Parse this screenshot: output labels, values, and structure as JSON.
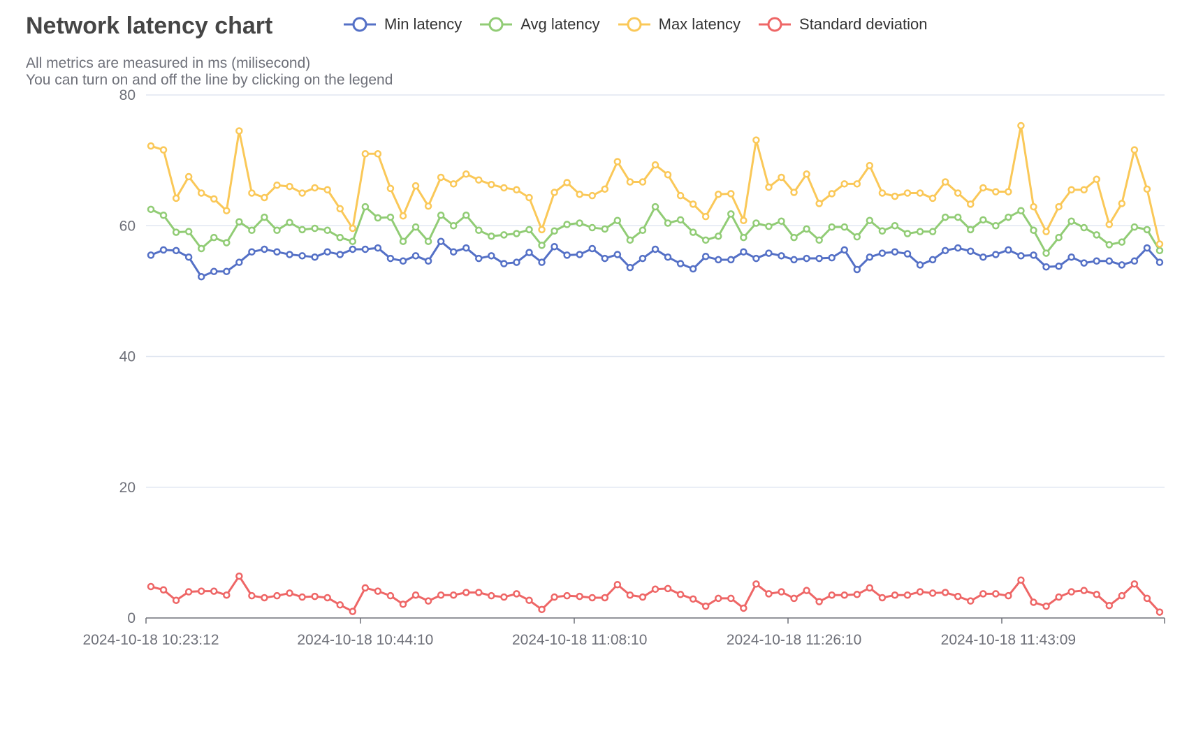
{
  "chart_data": {
    "type": "line",
    "title": "Network latency chart",
    "subtitle_lines": [
      "All metrics are measured in ms (milisecond)",
      "You can turn on and off the line by clicking on the legend"
    ],
    "xlabel": "",
    "ylabel": "",
    "ylim": [
      0,
      80
    ],
    "y_ticks": [
      0,
      20,
      40,
      60,
      80
    ],
    "grid": "horizontal",
    "legend_position": "top",
    "x_tick_labels": [
      {
        "label": "2024-10-18 10:23:12",
        "index": 0
      },
      {
        "label": "2024-10-18 10:44:10",
        "index": 17
      },
      {
        "label": "2024-10-18 11:08:10",
        "index": 34
      },
      {
        "label": "2024-10-18 11:26:10",
        "index": 51
      },
      {
        "label": "2024-10-18 11:43:09",
        "index": 68
      }
    ],
    "point_count": 81,
    "series": [
      {
        "name": "Min latency",
        "color": "#5470c6",
        "values": [
          55.5,
          56.3,
          56.2,
          55.2,
          52.2,
          53.0,
          53.0,
          54.4,
          56.0,
          56.4,
          56.0,
          55.6,
          55.4,
          55.2,
          56.0,
          55.6,
          56.4,
          56.4,
          56.6,
          55.0,
          54.6,
          55.4,
          54.6,
          57.6,
          56.0,
          56.6,
          55.0,
          55.4,
          54.2,
          54.4,
          55.9,
          54.4,
          56.8,
          55.5,
          55.6,
          56.5,
          55.0,
          55.6,
          53.6,
          55.0,
          56.4,
          55.2,
          54.2,
          53.4,
          55.3,
          54.8,
          54.8,
          56.0,
          55.0,
          55.8,
          55.4,
          54.8,
          55.0,
          55.0,
          55.1,
          56.3,
          53.3,
          55.2,
          55.8,
          56.0,
          55.7,
          54.0,
          54.8,
          56.2,
          56.6,
          56.1,
          55.2,
          55.6,
          56.3,
          55.4,
          55.5,
          53.7,
          53.8,
          55.2,
          54.3,
          54.6,
          54.6,
          54.0,
          54.6,
          56.6,
          54.4
        ]
      },
      {
        "name": "Avg latency",
        "color": "#91cc75",
        "values": [
          62.5,
          61.6,
          59.0,
          59.1,
          56.5,
          58.2,
          57.4,
          60.6,
          59.3,
          61.3,
          59.3,
          60.5,
          59.4,
          59.6,
          59.3,
          58.2,
          57.6,
          62.9,
          61.2,
          61.3,
          57.6,
          59.8,
          57.6,
          61.6,
          60.0,
          61.6,
          59.3,
          58.4,
          58.6,
          58.8,
          59.4,
          57.0,
          59.2,
          60.2,
          60.4,
          59.7,
          59.5,
          60.8,
          57.8,
          59.3,
          62.9,
          60.4,
          60.9,
          59.0,
          57.8,
          58.4,
          61.8,
          58.2,
          60.4,
          59.9,
          60.7,
          58.2,
          59.5,
          57.8,
          59.8,
          59.8,
          58.3,
          60.8,
          59.2,
          60.0,
          58.8,
          59.1,
          59.1,
          61.3,
          61.3,
          59.4,
          60.9,
          60.0,
          61.3,
          62.3,
          59.3,
          55.8,
          58.2,
          60.7,
          59.7,
          58.6,
          57.1,
          57.5,
          59.8,
          59.4,
          56.2
        ]
      },
      {
        "name": "Max latency",
        "color": "#fac858",
        "values": [
          72.2,
          71.6,
          64.2,
          67.5,
          65.0,
          64.1,
          62.3,
          74.5,
          65.0,
          64.3,
          66.2,
          66.0,
          65.0,
          65.8,
          65.5,
          62.6,
          59.6,
          71.0,
          71.0,
          65.7,
          61.5,
          66.1,
          63.0,
          67.4,
          66.4,
          67.9,
          67.0,
          66.3,
          65.8,
          65.5,
          64.3,
          59.4,
          65.1,
          66.6,
          64.8,
          64.6,
          65.6,
          69.8,
          66.7,
          66.7,
          69.3,
          67.8,
          64.6,
          63.3,
          61.4,
          64.8,
          64.9,
          60.8,
          73.1,
          65.9,
          67.4,
          65.1,
          67.9,
          63.4,
          64.9,
          66.4,
          66.4,
          69.2,
          65.0,
          64.5,
          65.0,
          65.0,
          64.2,
          66.7,
          65.0,
          63.3,
          65.8,
          65.2,
          65.2,
          75.3,
          62.9,
          59.1,
          62.9,
          65.5,
          65.5,
          67.1,
          60.2,
          63.4,
          71.6,
          65.6,
          57.2
        ]
      },
      {
        "name": "Standard deviation",
        "color": "#ee6666",
        "values": [
          4.8,
          4.3,
          2.7,
          4.0,
          4.1,
          4.1,
          3.5,
          6.4,
          3.4,
          3.1,
          3.4,
          3.8,
          3.2,
          3.3,
          3.1,
          2.0,
          1.0,
          4.6,
          4.1,
          3.4,
          2.1,
          3.5,
          2.6,
          3.5,
          3.5,
          3.9,
          3.9,
          3.4,
          3.2,
          3.7,
          2.7,
          1.3,
          3.2,
          3.4,
          3.3,
          3.1,
          3.1,
          5.1,
          3.5,
          3.2,
          4.4,
          4.5,
          3.6,
          2.9,
          1.8,
          3.0,
          3.0,
          1.5,
          5.2,
          3.7,
          4.0,
          3.0,
          4.2,
          2.5,
          3.5,
          3.5,
          3.6,
          4.6,
          3.1,
          3.5,
          3.5,
          4.0,
          3.8,
          3.9,
          3.3,
          2.6,
          3.7,
          3.7,
          3.4,
          5.8,
          2.4,
          1.8,
          3.2,
          4.0,
          4.2,
          3.6,
          1.9,
          3.4,
          5.2,
          3.0,
          0.9
        ]
      }
    ]
  }
}
